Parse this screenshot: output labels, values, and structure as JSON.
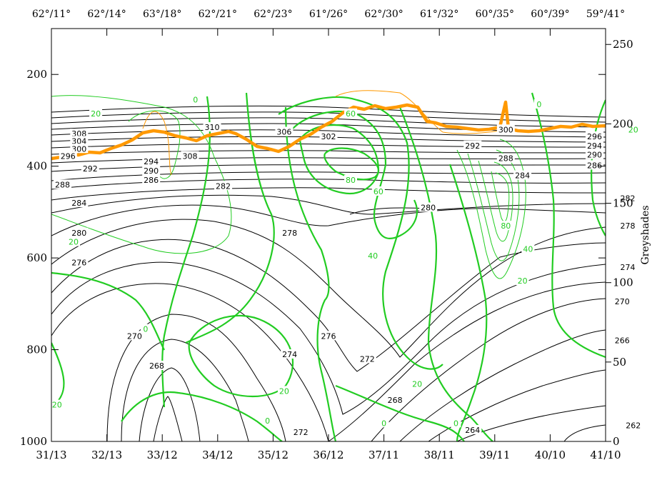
{
  "chart_data": {
    "type": "contour",
    "title": "",
    "ylim": [
      1000,
      100
    ],
    "y2lim": [
      0,
      260
    ],
    "y_left_ticks": [
      "200",
      "400",
      "600",
      "800",
      "1000"
    ],
    "y_right_ticks": [
      "0",
      "50",
      "100",
      "150",
      "200",
      "250"
    ],
    "y_right_label": "Greyshades",
    "x_bottom_ticks": [
      "31/13",
      "32/13",
      "33/12",
      "34/12",
      "35/12",
      "36/12",
      "37/11",
      "38/11",
      "39/11",
      "40/10",
      "41/10"
    ],
    "x_top_ticks": [
      "62°/11°",
      "62°/14°",
      "63°/18°",
      "62°/21°",
      "62°/23°",
      "61°/26°",
      "62°/30°",
      "61°/32°",
      "60°/35°",
      "60°/39°",
      "59°/41°"
    ],
    "colors": {
      "theta": "#000000",
      "wind": "#22cc22",
      "tropopause": "#ff9900"
    },
    "theta_contours": [
      {
        "label": "308",
        "x": 0.5,
        "p": 329,
        "level": 308
      },
      {
        "label": "304",
        "x": 0.5,
        "p": 345,
        "level": 304
      },
      {
        "label": "300",
        "x": 0.5,
        "p": 362,
        "level": 300
      },
      {
        "label": "296",
        "x": 0.3,
        "p": 378,
        "level": 296
      },
      {
        "label": "292",
        "x": 0.7,
        "p": 405,
        "level": 292
      },
      {
        "label": "288",
        "x": 0.2,
        "p": 440,
        "level": 288
      },
      {
        "label": "284",
        "x": 0.5,
        "p": 480,
        "level": 284
      },
      {
        "label": "280",
        "x": 0.5,
        "p": 545,
        "level": 280
      },
      {
        "label": "276",
        "x": 0.5,
        "p": 610,
        "level": 276
      },
      {
        "label": "310",
        "x": 2.9,
        "p": 315,
        "level": 310
      },
      {
        "label": "308",
        "x": 2.5,
        "p": 378,
        "level": 308
      },
      {
        "label": "294",
        "x": 1.8,
        "p": 390,
        "level": 294
      },
      {
        "label": "290",
        "x": 1.8,
        "p": 410,
        "level": 290
      },
      {
        "label": "286",
        "x": 1.8,
        "p": 430,
        "level": 286
      },
      {
        "label": "282",
        "x": 3.1,
        "p": 443,
        "level": 282
      },
      {
        "label": "306",
        "x": 4.2,
        "p": 325,
        "level": 306
      },
      {
        "label": "302",
        "x": 5.0,
        "p": 335,
        "level": 302
      },
      {
        "label": "278",
        "x": 4.3,
        "p": 545,
        "level": 278
      },
      {
        "label": "274",
        "x": 4.3,
        "p": 810,
        "level": 274
      },
      {
        "label": "270",
        "x": 1.5,
        "p": 770,
        "level": 270
      },
      {
        "label": "268",
        "x": 1.9,
        "p": 835,
        "level": 268
      },
      {
        "label": "276",
        "x": 5.0,
        "p": 770,
        "level": 276
      },
      {
        "label": "272",
        "x": 5.7,
        "p": 820,
        "level": 272
      },
      {
        "label": "268",
        "x": 6.2,
        "p": 910,
        "level": 268
      },
      {
        "label": "272",
        "x": 4.5,
        "p": 980,
        "level": 272
      },
      {
        "label": "280",
        "x": 6.8,
        "p": 490,
        "level": 280
      },
      {
        "label": "264",
        "x": 7.6,
        "p": 975,
        "level": 264
      },
      {
        "label": "300",
        "x": 8.2,
        "p": 320,
        "level": 300
      },
      {
        "label": "296",
        "x": 9.8,
        "p": 335,
        "level": 296
      },
      {
        "label": "292",
        "x": 7.6,
        "p": 355,
        "level": 292
      },
      {
        "label": "294",
        "x": 9.8,
        "p": 355,
        "level": 294
      },
      {
        "label": "290",
        "x": 9.8,
        "p": 375,
        "level": 290
      },
      {
        "label": "288",
        "x": 8.2,
        "p": 383,
        "level": 288
      },
      {
        "label": "286",
        "x": 9.8,
        "p": 398,
        "level": 286
      },
      {
        "label": "284",
        "x": 8.5,
        "p": 420,
        "level": 284
      },
      {
        "label": "282",
        "x": 10.4,
        "p": 470,
        "level": 282
      },
      {
        "label": "278",
        "x": 10.4,
        "p": 530,
        "level": 278
      },
      {
        "label": "274",
        "x": 10.4,
        "p": 620,
        "level": 274
      },
      {
        "label": "270",
        "x": 10.3,
        "p": 695,
        "level": 270
      },
      {
        "label": "266",
        "x": 10.3,
        "p": 780,
        "level": 266
      },
      {
        "label": "262",
        "x": 10.5,
        "p": 965,
        "level": 262
      }
    ],
    "wind_contours": [
      {
        "label": "20",
        "x": 0.8,
        "p": 285
      },
      {
        "label": "20",
        "x": 0.4,
        "p": 565
      },
      {
        "label": "0",
        "x": 2.6,
        "p": 255
      },
      {
        "label": "0",
        "x": 1.7,
        "p": 755
      },
      {
        "label": "20",
        "x": 0.1,
        "p": 920
      },
      {
        "label": "20",
        "x": 4.2,
        "p": 890
      },
      {
        "label": "0",
        "x": 3.9,
        "p": 955
      },
      {
        "label": "60",
        "x": 5.4,
        "p": 285
      },
      {
        "label": "80",
        "x": 5.4,
        "p": 430
      },
      {
        "label": "60",
        "x": 5.9,
        "p": 455
      },
      {
        "label": "40",
        "x": 5.8,
        "p": 595
      },
      {
        "label": "20",
        "x": 6.6,
        "p": 875
      },
      {
        "label": "0",
        "x": 6.0,
        "p": 960
      },
      {
        "label": "0",
        "x": 7.3,
        "p": 960
      },
      {
        "label": "0",
        "x": 8.8,
        "p": 265
      },
      {
        "label": "80",
        "x": 8.2,
        "p": 530
      },
      {
        "label": "40",
        "x": 8.6,
        "p": 580
      },
      {
        "label": "20",
        "x": 8.5,
        "p": 650
      },
      {
        "label": "20",
        "x": 10.5,
        "p": 320
      }
    ]
  }
}
